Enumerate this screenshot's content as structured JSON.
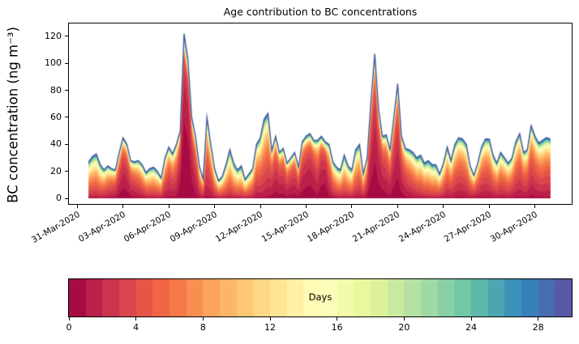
{
  "title": "Age contribution to BC concentrations",
  "y_axis": {
    "label": "BC concentration (ng m⁻³)",
    "tick_labels": [
      "0",
      "20",
      "40",
      "60",
      "80",
      "100",
      "120"
    ],
    "tick_values": [
      0,
      20,
      40,
      60,
      80,
      100,
      120
    ]
  },
  "x_axis": {
    "tick_labels": [
      "31-Mar-2020",
      "03-Apr-2020",
      "06-Apr-2020",
      "09-Apr-2020",
      "12-Apr-2020",
      "15-Apr-2020",
      "18-Apr-2020",
      "21-Apr-2020",
      "24-Apr-2020",
      "27-Apr-2020",
      "30-Apr-2020"
    ],
    "tick_days": [
      0,
      3,
      6,
      9,
      12,
      15,
      18,
      21,
      24,
      27,
      30
    ]
  },
  "colorbar": {
    "label": "Days",
    "min": 0,
    "max": 30,
    "bins": 30,
    "tick_labels": [
      "0",
      "4",
      "8",
      "12",
      "16",
      "20",
      "24",
      "28"
    ],
    "tick_values": [
      0,
      4,
      8,
      12,
      16,
      20,
      24,
      28
    ],
    "colormap": "Spectral",
    "anchors": [
      "#9e0142",
      "#d53e4f",
      "#f46d43",
      "#fdae61",
      "#fee08b",
      "#ffffbf",
      "#e6f598",
      "#abdda4",
      "#66c2a5",
      "#3288bd",
      "#5e4fa2"
    ]
  },
  "chart_data": {
    "type": "area",
    "stacked": true,
    "title": "Age contribution to BC concentrations",
    "xlabel": "",
    "ylabel": "BC concentration (ng m⁻³)",
    "grid": false,
    "legend_position": "colorbar-bottom",
    "colorbar_label": "Days",
    "ylim": [
      0,
      129
    ],
    "xlim_days_from_epoch": [
      -0.5,
      32.4
    ],
    "x_day_epoch": "31-Mar-2020 00:00",
    "x_day_start": 0.75,
    "x_day_step": 0.25,
    "n_points": 122,
    "n_age_layers": 30,
    "age_layer_width_days": 1,
    "age_range_days": [
      0,
      30
    ],
    "total_bc": [
      27,
      31,
      33,
      25,
      21,
      24,
      22,
      21,
      34,
      45,
      40,
      28,
      27,
      28,
      25,
      19,
      22,
      23,
      20,
      15,
      30,
      38,
      33,
      40,
      50,
      122,
      103,
      60,
      46,
      24,
      14,
      60,
      40,
      22,
      13,
      16,
      25,
      36,
      26,
      21,
      24,
      14,
      18,
      22,
      40,
      45,
      59,
      63,
      35,
      46,
      34,
      37,
      26,
      30,
      34,
      23,
      42,
      46,
      48,
      43,
      43,
      46,
      42,
      40,
      27,
      23,
      21,
      32,
      24,
      21,
      36,
      40,
      18,
      30,
      72,
      107,
      66,
      46,
      47,
      36,
      60,
      85,
      46,
      37,
      36,
      34,
      30,
      32,
      26,
      28,
      25,
      25,
      18,
      26,
      38,
      28,
      40,
      45,
      44,
      40,
      24,
      17,
      26,
      38,
      44,
      44,
      32,
      26,
      34,
      30,
      26,
      30,
      42,
      48,
      34,
      36,
      54,
      46,
      41,
      43,
      45,
      44
    ],
    "age_mode_days": [
      8,
      8,
      8,
      8,
      7,
      6,
      5,
      4.5,
      3,
      2.2,
      2.5,
      3.5,
      4,
      5,
      6,
      7,
      8,
      8,
      8,
      7,
      5,
      4,
      4.5,
      4,
      2,
      1.1,
      1.2,
      2,
      3,
      5,
      6,
      4.5,
      5,
      7,
      8,
      8,
      8.5,
      8,
      9,
      9,
      9.5,
      9,
      8,
      7,
      5.5,
      6,
      6,
      5,
      3.5,
      2.8,
      3,
      3,
      3.5,
      3,
      3,
      3.5,
      2.5,
      2.2,
      2,
      2.5,
      3.5,
      2,
      1.8,
      4,
      6,
      7.5,
      8,
      8,
      8,
      8,
      7,
      6.5,
      7,
      4,
      2.2,
      1.8,
      2.2,
      2.5,
      3,
      3.5,
      2.5,
      2.2,
      3,
      4,
      5,
      6,
      7,
      7.5,
      8,
      8.5,
      9,
      9,
      8,
      7,
      6,
      6,
      5.5,
      5,
      5,
      5.5,
      6,
      6,
      5.5,
      5,
      5,
      5.5,
      6,
      6.5,
      6,
      6,
      6.5,
      6,
      5,
      4.5,
      5,
      5,
      4,
      4.5,
      5,
      5.5,
      5,
      5
    ],
    "age_distribution_model": {
      "type": "lognormal",
      "sigma": 0.85,
      "uniform_mix": 0.14
    },
    "envelope_line_color": "#44599f"
  }
}
